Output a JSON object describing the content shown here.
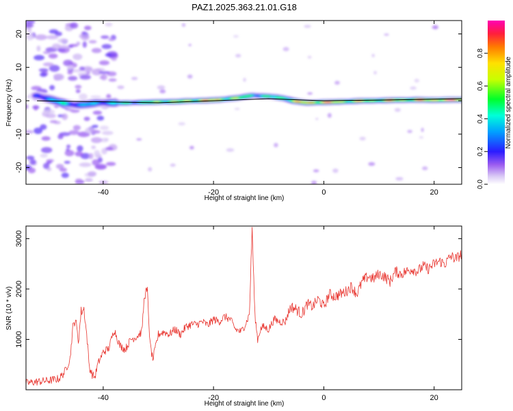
{
  "title": "PAZ1.2025.363.21.01.G18",
  "chart_data": [
    {
      "type": "heatmap",
      "title": "PAZ1.2025.363.21.01.G18",
      "xlabel": "Height of straight line (km)",
      "ylabel": "Frequency (Hz)",
      "xlim": [
        -54,
        25
      ],
      "ylim": [
        -25,
        24
      ],
      "x_ticks": [
        -40,
        -20,
        0,
        20
      ],
      "x_tick_labels": [
        "-40",
        "-20",
        "0",
        "20"
      ],
      "y_ticks": [
        -20,
        -10,
        0,
        10,
        20
      ],
      "y_tick_labels": [
        "-20",
        "-10",
        "0",
        "10",
        "20"
      ],
      "colorbar": {
        "label": "Normalized spectral amplitude",
        "range": [
          0,
          1
        ],
        "ticks": [
          0.0,
          0.2,
          0.4,
          0.6,
          0.8
        ],
        "tick_labels": [
          "0.0",
          "0.2",
          "0.4",
          "0.6",
          "0.8"
        ]
      },
      "model_line": {
        "x": [
          -52,
          -30,
          -15,
          -10,
          0,
          10,
          25
        ],
        "y": [
          0.0,
          -0.6,
          0.3,
          0.6,
          0.0,
          0.2,
          0.6
        ]
      },
      "ridge": {
        "x": [
          -52,
          -50,
          -47,
          -45,
          -43,
          -41,
          -39,
          -37,
          -35,
          -33,
          -31,
          -29,
          -27,
          -25,
          -23,
          -21,
          -19,
          -17,
          -15,
          -13,
          -11,
          -9,
          -7,
          -5,
          -3,
          -1,
          1,
          3,
          5,
          7,
          9,
          11,
          13,
          15,
          17,
          19,
          21,
          23,
          25
        ],
        "freq": [
          1.5,
          0.6,
          -0.8,
          -1.3,
          -1.1,
          -0.6,
          -0.6,
          -0.7,
          -0.6,
          -0.5,
          -0.4,
          -0.3,
          -0.3,
          -0.1,
          0.0,
          0.1,
          0.3,
          0.6,
          1.0,
          1.6,
          1.4,
          1.2,
          0.6,
          -0.2,
          -0.6,
          -0.5,
          -0.4,
          -0.3,
          -0.2,
          0.0,
          0.0,
          0.1,
          0.2,
          0.2,
          0.3,
          0.2,
          0.2,
          0.3,
          0.3
        ],
        "amplitude": [
          0.25,
          0.35,
          0.45,
          0.3,
          0.4,
          0.35,
          0.4,
          0.45,
          0.55,
          0.5,
          0.6,
          0.75,
          0.65,
          0.7,
          0.8,
          0.85,
          0.8,
          0.7,
          0.6,
          0.55,
          0.5,
          0.5,
          0.65,
          0.75,
          0.85,
          0.9,
          0.85,
          0.8,
          0.7,
          0.75,
          0.7,
          0.75,
          0.8,
          0.75,
          0.8,
          0.85,
          0.9,
          0.92,
          0.95
        ]
      },
      "noise_region_x": [
        -54,
        -38
      ]
    },
    {
      "type": "line",
      "xlabel": "Height of straight line (km)",
      "ylabel": "SNR (10 * v/v)",
      "xlim": [
        -54,
        25
      ],
      "ylim": [
        0,
        3250
      ],
      "x_ticks": [
        -40,
        -20,
        0,
        20
      ],
      "x_tick_labels": [
        "-40",
        "-20",
        "0",
        "20"
      ],
      "y_ticks": [
        1000,
        2000,
        3000
      ],
      "y_tick_labels": [
        "1000",
        "2000",
        "3000"
      ],
      "series": [
        {
          "name": "SNR",
          "color": "#e8332d",
          "x": [
            -54,
            -52,
            -50,
            -48,
            -47,
            -46,
            -45.5,
            -45,
            -44.5,
            -44,
            -43.5,
            -43,
            -42.5,
            -42,
            -41.5,
            -41,
            -40,
            -39,
            -38,
            -37,
            -36,
            -35,
            -34,
            -33,
            -32.5,
            -32,
            -31.5,
            -31,
            -30,
            -29,
            -28,
            -27,
            -26,
            -25,
            -24,
            -23,
            -22,
            -21,
            -20,
            -19,
            -18,
            -17,
            -16,
            -15,
            -14,
            -13.5,
            -13,
            -12.5,
            -12,
            -11.5,
            -11,
            -10,
            -9,
            -8,
            -7,
            -6,
            -5,
            -4,
            -3,
            -2,
            -1,
            0,
            1,
            2,
            3,
            4,
            5,
            6,
            7,
            8,
            9,
            10,
            11,
            12,
            13,
            14,
            15,
            16,
            17,
            18,
            19,
            20,
            21,
            22,
            23,
            24,
            25
          ],
          "y": [
            130,
            160,
            180,
            220,
            350,
            620,
            1250,
            1400,
            950,
            1550,
            1600,
            1100,
            450,
            300,
            250,
            500,
            750,
            820,
            1200,
            880,
            800,
            1000,
            1050,
            1150,
            1900,
            1950,
            900,
            600,
            1100,
            1150,
            1100,
            1200,
            1100,
            1250,
            1300,
            1300,
            1350,
            1280,
            1400,
            1350,
            1450,
            1400,
            1200,
            1150,
            1350,
            1500,
            3200,
            1500,
            1000,
            1200,
            1250,
            1200,
            1400,
            1350,
            1350,
            1650,
            1600,
            1500,
            1700,
            1650,
            1800,
            1650,
            1900,
            1850,
            1900,
            1950,
            2050,
            1900,
            2150,
            2250,
            2200,
            2300,
            2250,
            2150,
            2350,
            2300,
            2350,
            2400,
            2350,
            2450,
            2400,
            2500,
            2550,
            2500,
            2650,
            2600,
            2700
          ]
        }
      ]
    }
  ]
}
